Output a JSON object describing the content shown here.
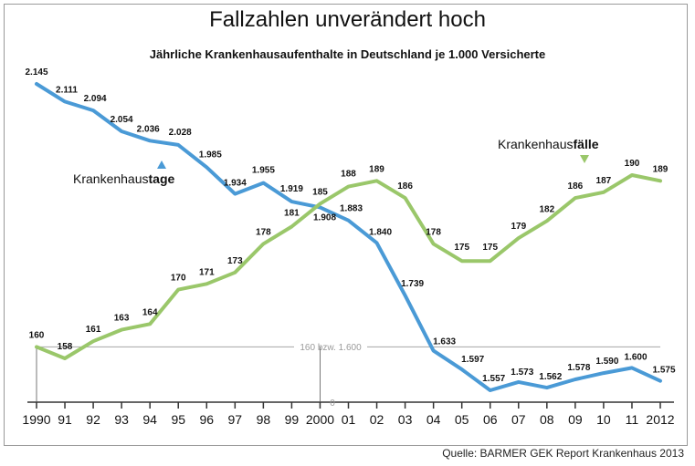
{
  "title": "Fallzahlen unverändert hoch",
  "subtitle": "Jährliche Krankenhausaufenthalte in Deutschland je 1.000 Versicherte",
  "source": "Quelle: BARMER GEK Report Krankenhaus 2013",
  "colors": {
    "tage": "#4a9ad6",
    "faelle": "#9ac76a",
    "reference": "#b0b0b0"
  },
  "chart_data": {
    "type": "line",
    "categories": [
      "1990",
      "91",
      "92",
      "93",
      "94",
      "95",
      "96",
      "97",
      "98",
      "99",
      "2000",
      "01",
      "02",
      "03",
      "04",
      "05",
      "06",
      "07",
      "08",
      "09",
      "10",
      "11",
      "2012"
    ],
    "series": [
      {
        "key": "tage",
        "name": "Krankenhaustage",
        "name_prefix": "Krankenhaus",
        "name_bold": "tage",
        "values": [
          2145,
          2111,
          2094,
          2054,
          2036,
          2028,
          1985,
          1934,
          1955,
          1919,
          1908,
          1883,
          1840,
          1739,
          1633,
          1597,
          1557,
          1573,
          1562,
          1578,
          1590,
          1600,
          1575
        ],
        "labels": [
          "2.145",
          "2.111",
          "2.094",
          "2.054",
          "2.036",
          "2.028",
          "1.985",
          "1.934",
          "1.955",
          "1.919",
          "1.908",
          "1.883",
          "1.840",
          "1.739",
          "1.633",
          "1.597",
          "1.557",
          "1.573",
          "1.562",
          "1.578",
          "1.590",
          "1.600",
          "1.575"
        ]
      },
      {
        "key": "faelle",
        "name": "Krankenhausfälle",
        "name_prefix": "Krankenhaus",
        "name_bold": "fälle",
        "values": [
          160,
          158,
          161,
          163,
          164,
          170,
          171,
          173,
          178,
          181,
          185,
          188,
          189,
          186,
          178,
          175,
          175,
          179,
          182,
          186,
          187,
          190,
          189
        ],
        "labels": [
          "160",
          "158",
          "161",
          "163",
          "164",
          "170",
          "171",
          "173",
          "178",
          "181",
          "185",
          "188",
          "189",
          "186",
          "178",
          "175",
          "175",
          "179",
          "182",
          "186",
          "187",
          "190",
          "189"
        ]
      }
    ],
    "reference_line": {
      "label": "160 bzw. 1.600",
      "value": 160
    },
    "zero_label": "0",
    "grid": false,
    "xlabel": "",
    "ylabel": ""
  }
}
